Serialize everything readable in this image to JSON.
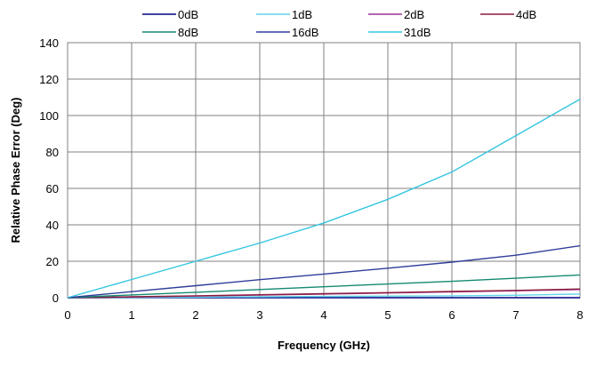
{
  "chart_data": {
    "type": "line",
    "title": "",
    "xlabel": "Frequency (GHz)",
    "ylabel": "Relative Phase Error (Deg)",
    "xlim": [
      0,
      8
    ],
    "ylim": [
      0,
      140
    ],
    "xticks": [
      "0",
      "1",
      "2",
      "3",
      "4",
      "5",
      "6",
      "7",
      "8"
    ],
    "yticks": [
      "0",
      "20",
      "40",
      "60",
      "80",
      "100",
      "120",
      "140"
    ],
    "grid": true,
    "legend_position": "top",
    "series": [
      {
        "name": "0dB",
        "color": "#000080",
        "x": [
          0,
          8
        ],
        "y": [
          0,
          0
        ]
      },
      {
        "name": "1dB",
        "color": "#5fd3e8",
        "x": [
          0,
          1,
          2,
          3,
          4,
          5,
          6,
          7,
          8
        ],
        "y": [
          0,
          0.1,
          0.3,
          0.5,
          0.7,
          0.9,
          1.0,
          1.3,
          2
        ]
      },
      {
        "name": "2dB",
        "color": "#993399",
        "x": [
          0,
          1,
          2,
          3,
          4,
          5,
          6,
          7,
          8
        ],
        "y": [
          0,
          0.4,
          0.9,
          1.4,
          2.0,
          2.6,
          3.2,
          3.8,
          4.5
        ]
      },
      {
        "name": "4dB",
        "color": "#8b1a3a",
        "x": [
          0,
          1,
          2,
          3,
          4,
          5,
          6,
          7,
          8
        ],
        "y": [
          0,
          0.5,
          1.0,
          1.6,
          2.2,
          2.8,
          3.4,
          4.0,
          4.8
        ]
      },
      {
        "name": "8dB",
        "color": "#138a72",
        "x": [
          0,
          1,
          2,
          3,
          4,
          5,
          6,
          7,
          8
        ],
        "y": [
          0,
          1.5,
          3.0,
          4.5,
          6.0,
          7.5,
          9.0,
          10.7,
          12.5
        ]
      },
      {
        "name": "16dB",
        "color": "#303e9a",
        "x": [
          0,
          1,
          2,
          3,
          4,
          5,
          6,
          7,
          8
        ],
        "y": [
          0,
          3.3,
          6.6,
          9.9,
          13.0,
          16.2,
          19.5,
          23.3,
          28.5
        ]
      },
      {
        "name": "31dB",
        "color": "#33c5e0",
        "x": [
          0,
          1,
          2,
          3,
          4,
          5,
          6,
          7,
          8
        ],
        "y": [
          0,
          10,
          20,
          30,
          41,
          54,
          69,
          89,
          109
        ]
      }
    ]
  }
}
